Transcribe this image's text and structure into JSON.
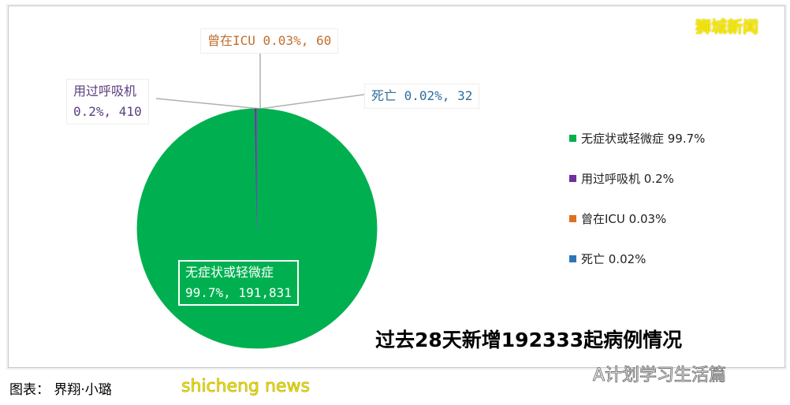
{
  "chart_data": {
    "type": "pie",
    "title": "过去28天新增192333起病例情况",
    "slices": [
      {
        "name": "无症状或轻微症",
        "value": 191831,
        "percent_label": "99.7%",
        "color": "#00b050",
        "label_color": "#ffffff"
      },
      {
        "name": "用过呼吸机",
        "value": 410,
        "percent_label": "0.2%",
        "color": "#7030a0",
        "label_color": "#5a3e80"
      },
      {
        "name": "曾在ICU",
        "value": 60,
        "percent_label": "0.03%",
        "color": "#e07020",
        "label_color": "#c07030"
      },
      {
        "name": "死亡",
        "value": 32,
        "percent_label": "0.02%",
        "color": "#2e75b6",
        "label_color": "#2e6e9e"
      }
    ],
    "data_labels": [
      "无症状或轻微症 99.7%, 191,831",
      "用过呼吸机 0.2%, 410",
      "曾在ICU 0.03%, 60",
      "死亡 0.02%, 32"
    ],
    "legend": [
      "无症状或轻微症 99.7%",
      "用过呼吸机 0.2%",
      "曾在ICU 0.03%",
      "死亡 0.02%"
    ],
    "legend_position": "right"
  },
  "labels": {
    "green_l1": "无症状或轻微症",
    "green_l2": "99.7%, 191,831",
    "purple_l1": "用过呼吸机",
    "purple_l2": "0.2%, 410",
    "orange": "曾在ICU 0.03%, 60",
    "blue": "死亡 0.02%, 32"
  },
  "brand": "狮城新闻",
  "wechat": "A计划学习生活篇",
  "caption": "图表：  界翔·小璐",
  "watermark": "shicheng news"
}
